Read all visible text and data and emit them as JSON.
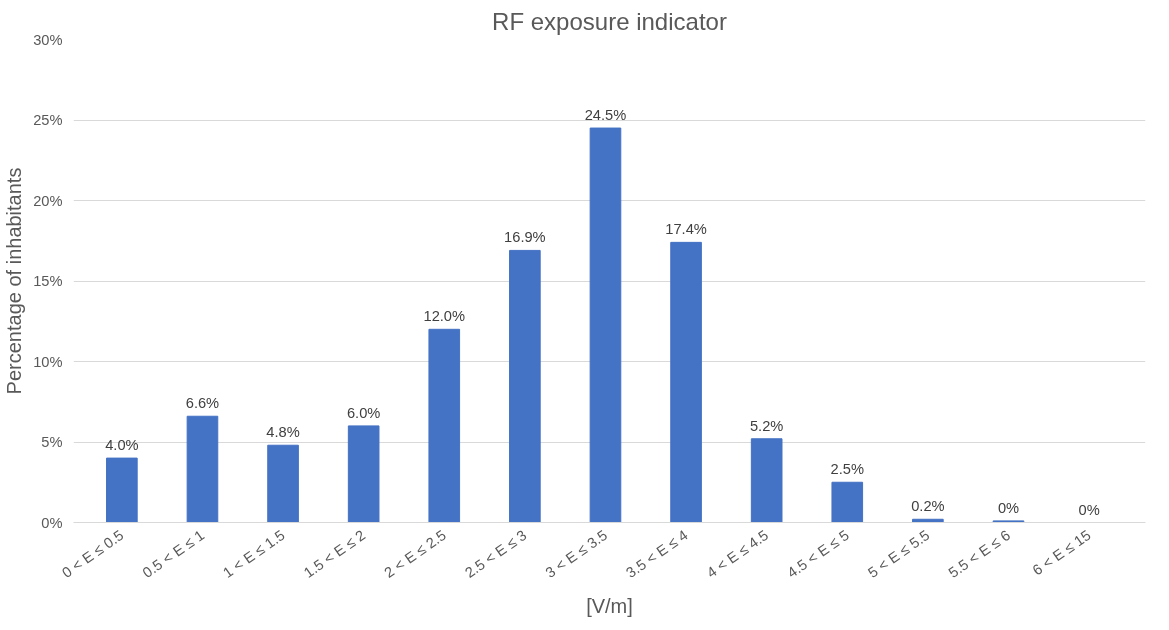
{
  "chart_data": {
    "type": "bar",
    "title": "RF exposure indicator",
    "xlabel": "[V/m]",
    "ylabel": "Percentage of inhabitants",
    "categories": [
      "0 < E ≤ 0.5",
      "0.5 < E ≤ 1",
      "1 < E ≤ 1.5",
      "1.5 < E ≤ 2",
      "2 < E ≤ 2.5",
      "2.5 < E ≤ 3",
      "3 < E ≤ 3.5",
      "3.5 < E ≤ 4",
      "4 < E ≤ 4.5",
      "4.5 < E ≤ 5",
      "5 < E ≤ 5.5",
      "5.5 < E ≤ 6",
      "6 < E ≤ 15"
    ],
    "values": [
      4.0,
      6.6,
      4.8,
      6.0,
      12.0,
      16.9,
      24.5,
      17.4,
      5.2,
      2.5,
      0.2,
      0.1,
      0
    ],
    "value_labels": [
      "4.0%",
      "6.6%",
      "4.8%",
      "6.0%",
      "12.0%",
      "16.9%",
      "24.5%",
      "17.4%",
      "5.2%",
      "2.5%",
      "0.2%",
      "0%",
      "0%"
    ],
    "color": "#4472c4",
    "ylim": [
      0,
      30
    ],
    "yticks": [
      {
        "value": 0,
        "label": "0%"
      },
      {
        "value": 5,
        "label": "5%"
      },
      {
        "value": 10,
        "label": "10%"
      },
      {
        "value": 15,
        "label": "15%"
      },
      {
        "value": 20,
        "label": "20%"
      },
      {
        "value": 25,
        "label": "25%"
      },
      {
        "value": 30,
        "label": "30%"
      }
    ],
    "grid": "y"
  }
}
